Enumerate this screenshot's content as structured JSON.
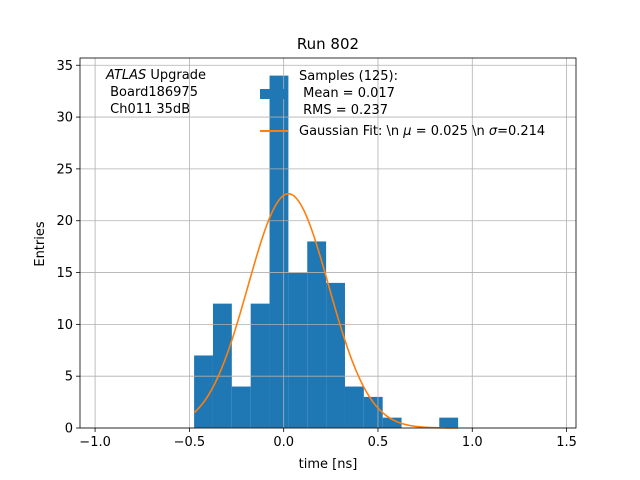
{
  "chart_data": {
    "type": "bar",
    "title": "Run 802",
    "xlabel": "time [ns]",
    "ylabel": "Entries",
    "xlim": [
      -1.08,
      1.55
    ],
    "ylim": [
      0,
      35.7
    ],
    "xticks": [
      -1.0,
      -0.5,
      0.0,
      0.5,
      1.0,
      1.5
    ],
    "xtick_labels": [
      "−1.0",
      "−0.5",
      "0.0",
      "0.5",
      "1.0",
      "1.5"
    ],
    "yticks": [
      0,
      5,
      10,
      15,
      20,
      25,
      30,
      35
    ],
    "ytick_labels": [
      "0",
      "5",
      "10",
      "15",
      "20",
      "25",
      "30",
      "35"
    ],
    "grid": true,
    "legend_position": "top-right",
    "bar_color": "#1f77b4",
    "fit_color": "#ff7f0e",
    "bin_edges": [
      -0.475,
      -0.375,
      -0.275,
      -0.175,
      -0.075,
      0.025,
      0.125,
      0.225,
      0.325,
      0.425,
      0.525,
      0.625,
      0.725,
      0.825,
      0.925
    ],
    "counts": [
      7,
      12,
      4,
      12,
      34,
      15,
      18,
      14,
      4,
      3,
      1,
      0,
      0,
      1
    ],
    "fit": {
      "amplitude": 22.6,
      "mu": 0.025,
      "sigma": 0.214,
      "x_range": [
        -0.475,
        0.925
      ]
    },
    "annotation": {
      "italic": "ATLAS",
      "rest": " Upgrade",
      "lines": [
        " Board186975",
        " Ch011 35dB"
      ]
    },
    "legend": {
      "histogram": [
        "Samples (125):",
        " Mean = 0.017",
        " RMS = 0.237"
      ],
      "fit_prefix": "Gaussian Fit: \\n ",
      "fit_mu_symbol": "μ",
      "fit_mu_value": " = 0.025 \\n ",
      "fit_sigma_symbol": "σ",
      "fit_sigma_value": "=0.214"
    }
  }
}
